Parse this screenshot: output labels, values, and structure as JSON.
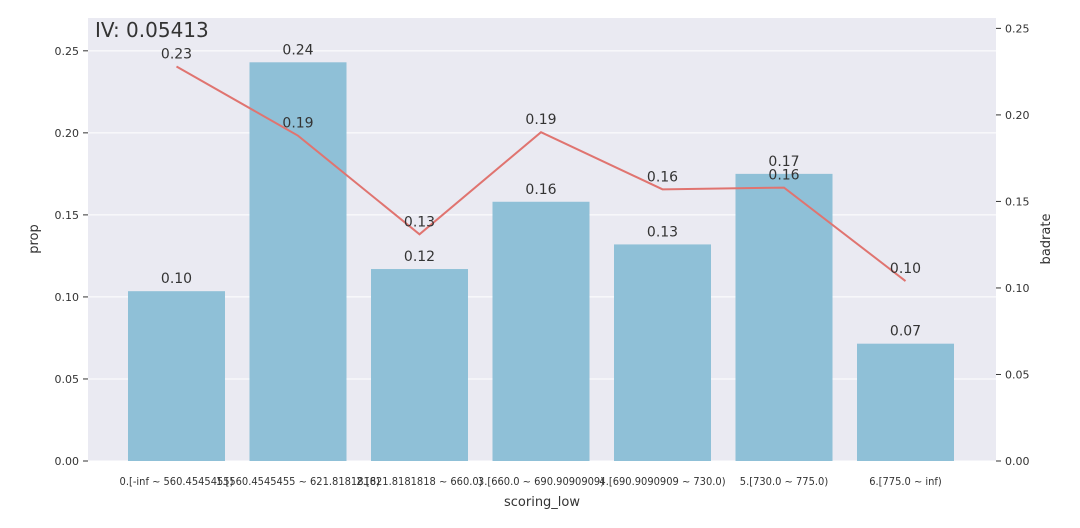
{
  "chart_data": {
    "type": "bar",
    "title": "IV: 0.05413",
    "xlabel": "scoring_low",
    "ylabel": "prop",
    "y2label": "badrate",
    "ylim": [
      0,
      0.27
    ],
    "y2lim": [
      0,
      0.256
    ],
    "yticks": [
      "0.00",
      "0.05",
      "0.10",
      "0.15",
      "0.20",
      "0.25"
    ],
    "y2ticks": [
      "0.00",
      "0.05",
      "0.10",
      "0.15",
      "0.20",
      "0.25"
    ],
    "grid": true,
    "categories": [
      "0.[-inf ~ 560.4545455)",
      "1.[560.4545455 ~ 621.8181818)",
      "2.[621.8181818 ~ 660.0)",
      "3.[660.0 ~ 690.9090909)",
      "4.[690.9090909 ~ 730.0)",
      "5.[730.0 ~ 775.0)",
      "6.[775.0 ~ inf)"
    ],
    "series": [
      {
        "type": "bar",
        "axis": "left",
        "values": [
          0.1035,
          0.243,
          0.117,
          0.158,
          0.132,
          0.175,
          0.0715
        ],
        "labels": [
          "0.10",
          "0.24",
          "0.12",
          "0.16",
          "0.13",
          "0.17",
          "0.07"
        ],
        "color": "#8fc0d7"
      },
      {
        "type": "line",
        "axis": "right",
        "values": [
          0.228,
          0.188,
          0.131,
          0.19,
          0.157,
          0.158,
          0.104
        ],
        "labels": [
          "0.23",
          "0.19",
          "0.13",
          "0.19",
          "0.16",
          "0.16",
          "0.10"
        ],
        "color": "#e07470"
      }
    ]
  }
}
